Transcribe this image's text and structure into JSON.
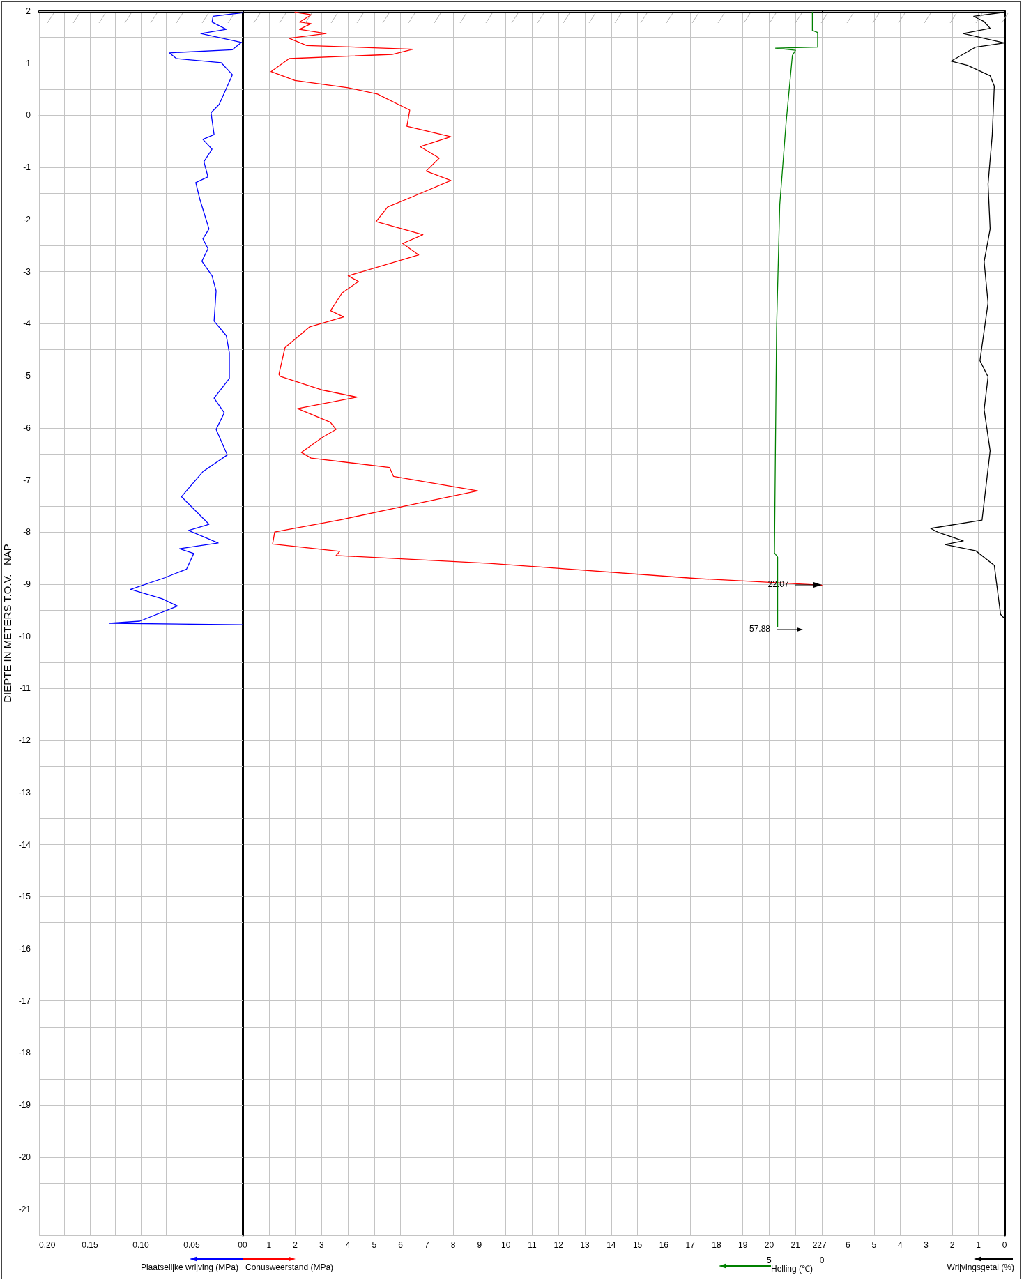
{
  "chart_data": [
    {
      "type": "line",
      "xlabel": "Plaatselijke wrijving (MPa)",
      "ylabel": "DIEPTE IN METERS T.O.V.   NAP",
      "xlim": [
        0.2,
        0
      ],
      "xticks": [
        {
          "value": 0.2,
          "label": "0.20"
        },
        {
          "value": 0.15,
          "label": "0.15"
        },
        {
          "value": 0.1,
          "label": "0.10"
        },
        {
          "value": 0.05,
          "label": "0.05"
        },
        0
      ],
      "ylim": [
        -21.5,
        2
      ],
      "yticks": [
        2,
        1,
        0,
        -1,
        -2,
        -3,
        -4,
        -5,
        -6,
        -7,
        -8,
        -9,
        -10,
        -11,
        -12,
        -13,
        -14,
        -15,
        -16,
        -17,
        -18,
        -19,
        -20,
        -21
      ],
      "grid": true,
      "marker": "none",
      "series": [
        {
          "color": "#0000ff",
          "x": [
            0,
            0.029,
            0.03,
            0.016,
            0.041,
            0.001,
            0.01,
            0.072,
            0.065,
            0.021,
            0.01,
            0.023,
            0.031,
            0.028,
            0.039,
            0.03,
            0.038,
            0.034,
            0.046,
            0.042,
            0.033,
            0.039,
            0.034,
            0.04,
            0.03,
            0.026,
            0.028,
            0.016,
            0.013,
            0.013,
            0.028,
            0.018,
            0.026,
            0.015,
            0.039,
            0.06,
            0.033,
            0.053,
            0.024,
            0.062,
            0.048,
            0.055,
            0.077,
            0.11,
            0.079,
            0.064,
            0.101,
            0.131,
            0
          ],
          "values": [
            1.97,
            1.9,
            1.79,
            1.65,
            1.57,
            1.4,
            1.26,
            1.2,
            1.09,
            1.01,
            0.78,
            0.21,
            0.05,
            -0.37,
            -0.46,
            -0.65,
            -0.89,
            -1.18,
            -1.29,
            -1.61,
            -2.18,
            -2.37,
            -2.56,
            -2.8,
            -3.08,
            -3.37,
            -3.95,
            -4.23,
            -4.56,
            -5.05,
            -5.43,
            -5.71,
            -6.03,
            -6.52,
            -6.84,
            -7.32,
            -7.85,
            -7.97,
            -8.21,
            -8.32,
            -8.41,
            -8.71,
            -8.88,
            -9.1,
            -9.28,
            -9.42,
            -9.71,
            -9.75,
            -9.78
          ]
        }
      ]
    },
    {
      "type": "line",
      "xlabel": "Conusweerstand (MPa)",
      "x2label": "Helling (℃)",
      "xlim": [
        0,
        22
      ],
      "xticks": [
        0,
        1,
        2,
        3,
        4,
        5,
        6,
        7,
        8,
        9,
        10,
        11,
        12,
        13,
        14,
        15,
        16,
        17,
        18,
        19,
        20,
        21,
        22
      ],
      "x2lim": [
        55,
        0
      ],
      "x2ticks": [
        5,
        0
      ],
      "ylim": [
        -21.5,
        2
      ],
      "tick_labels": "x",
      "grid": true,
      "marker": "none",
      "annotations": [
        {
          "text": "22.07",
          "x": 20.4,
          "y": -9.02
        },
        "57.88"
      ],
      "series": [
        {
          "color": "#ff0000",
          "x": [
            1.99,
            2.61,
            2.16,
            2.6,
            2.16,
            3.17,
            1.77,
            2.44,
            6.47,
            5.68,
            1.77,
            1.08,
            1.99,
            4.01,
            5.12,
            6.35,
            6.24,
            7.91,
            6.74,
            7.47,
            6.97,
            7.91,
            6.47,
            5.51,
            5.07,
            6.85,
            6.08,
            6.69,
            4.01,
            4.4,
            3.78,
            3.34,
            3.84,
            2.55,
            1.61,
            1.38,
            1.43,
            3.0,
            4.35,
            2.09,
            3.33,
            3.55,
            3.04,
            2.23,
            2.6,
            5.58,
            5.73,
            8.93,
            6.17,
            3.76,
            1.22,
            1.14,
            3.69,
            3.55,
            9.37,
            17.2,
            22
          ],
          "values": [
            1.98,
            1.93,
            1.79,
            1.76,
            1.65,
            1.57,
            1.48,
            1.34,
            1.27,
            1.17,
            1.09,
            0.84,
            0.67,
            0.53,
            0.41,
            0.1,
            -0.21,
            -0.41,
            -0.6,
            -0.82,
            -1.07,
            -1.25,
            -1.56,
            -1.76,
            -2.04,
            -2.29,
            -2.46,
            -2.68,
            -3.08,
            -3.19,
            -3.41,
            -3.75,
            -3.87,
            -4.06,
            -4.46,
            -4.97,
            -5.01,
            -5.27,
            -5.41,
            -5.63,
            -5.89,
            -6.03,
            -6.18,
            -6.47,
            -6.58,
            -6.76,
            -6.93,
            -7.21,
            -7.5,
            -7.76,
            -8.0,
            -8.23,
            -8.37,
            -8.45,
            -8.6,
            -8.89,
            -9.02
          ]
        },
        {
          "color": "#008000",
          "axis": "x2",
          "x": [
            0.9,
            0.9,
            0.4,
            0.4,
            4.4,
            2.5,
            2.8,
            3.4,
            4.0,
            4.3,
            4.5,
            4.2,
            4.2
          ],
          "values": [
            1.98,
            1.63,
            1.59,
            1.31,
            1.29,
            1.25,
            1.15,
            -0.15,
            -1.72,
            -4.08,
            -8.4,
            -8.48,
            -9.82
          ]
        }
      ]
    },
    {
      "type": "line",
      "xlabel": "Wrijvingsgetal (%)",
      "xlim": [
        7,
        0
      ],
      "xticks": [
        7,
        6,
        5,
        4,
        3,
        2,
        1,
        0
      ],
      "ylim": [
        -21.5,
        2
      ],
      "tick_labels": "x",
      "grid": true,
      "marker": "none",
      "series": [
        {
          "color": "#000000",
          "x": [
            0,
            1.18,
            0.78,
            0.55,
            1.58,
            0,
            1.1,
            2.05,
            1.42,
            0.55,
            0.39,
            0.47,
            0.63,
            0.55,
            0.78,
            0.63,
            0.94,
            0.63,
            0.78,
            0.55,
            0.86,
            2.83,
            2.52,
            1.58,
            2.28,
            1.1,
            0.39,
            0.15,
            0
          ],
          "values": [
            1.98,
            1.9,
            1.8,
            1.67,
            1.57,
            1.39,
            1.31,
            1.04,
            0.96,
            0.76,
            0.56,
            -0.38,
            -1.32,
            -2.18,
            -2.81,
            -3.6,
            -4.71,
            -5.02,
            -5.65,
            -6.44,
            -7.77,
            -7.93,
            -8.01,
            -8.17,
            -8.24,
            -8.36,
            -8.64,
            -9.58,
            -9.66
          ]
        }
      ]
    }
  ]
}
